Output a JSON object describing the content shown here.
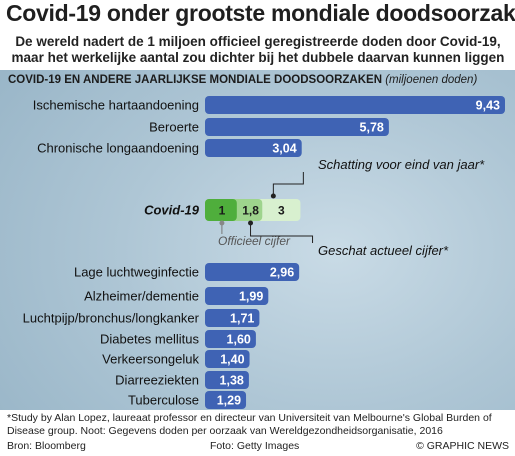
{
  "header": {
    "title": "Covid-19 onder grootste mondiale doodsoorzaken",
    "subtitle_line1": "De wereld nadert de 1 miljoen officieel geregistreerde doden door Covid-19,",
    "subtitle_line2": "maar het werkelijke aantal zou dichter bij het dubbele daarvan kunnen liggen"
  },
  "chart_heading": {
    "main": "COVID-19 EN ANDERE JAARLIJKSE MONDIALE DOODSOORZAKEN",
    "unit": "(miljoenen doden)"
  },
  "chart_data": {
    "type": "bar",
    "orientation": "horizontal",
    "unit": "miljoenen doden",
    "categories": [
      "Ischemische hartaandoening",
      "Beroerte",
      "Chronische longaandoening",
      "Covid-19",
      "Lage luchtweginfectie",
      "Alzheimer/dementie",
      "Luchtpijp/bronchus/longkanker",
      "Diabetes mellitus",
      "Verkeersongeluk",
      "Diarreeziekten",
      "Tuberculose"
    ],
    "values": [
      9.43,
      5.78,
      3.04,
      null,
      2.96,
      1.99,
      1.71,
      1.6,
      1.4,
      1.38,
      1.29
    ],
    "value_labels": [
      "9,43",
      "5,78",
      "3,04",
      "",
      "2,96",
      "1,99",
      "1,71",
      "1,60",
      "1,40",
      "1,38",
      "1,29"
    ],
    "covid": {
      "label": "Covid-19",
      "segments": [
        {
          "name": "Officieel cijfer",
          "value": 1,
          "label": "1"
        },
        {
          "name": "Geschat actueel cijfer",
          "value": 1.8,
          "label": "1,8"
        },
        {
          "name": "Schatting voor eind van jaar*",
          "value": 3,
          "label": "3"
        }
      ]
    },
    "xlim": [
      0,
      9.43
    ],
    "colors": {
      "bar": "#3f63b4",
      "covid_official": "#4fae3c",
      "covid_estimate": "#9ed48d",
      "covid_year": "#d8f0cf"
    }
  },
  "annotations": {
    "year_estimate": "Schatting voor eind van jaar*",
    "official": "Officieel cijfer",
    "actual": "Geschat actueel cijfer*"
  },
  "footer": {
    "footnote": "*Study by Alan Lopez, laureaat professor en directeur van Universiteit van Melbourne's Global Burden of Disease group. Noot: Gegevens doden per oorzaak van Wereldgezondheidsorganisatie, 2016",
    "source": "Bron: Bloomberg",
    "photo": "Foto: Getty Images",
    "credit": "© GRAPHIC NEWS"
  }
}
